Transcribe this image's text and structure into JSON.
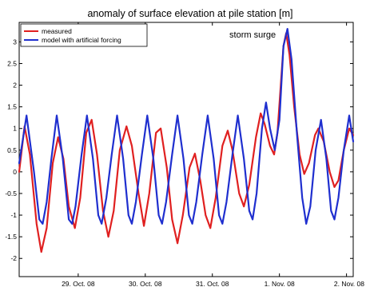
{
  "chart_data": {
    "type": "line",
    "title": "anomaly of surface elevation at pile station [m]",
    "xlabel": "",
    "ylabel": "",
    "xlim": [
      28.12,
      33.1
    ],
    "ylim": [
      -2.42,
      3.45
    ],
    "x_unit": "day of Oct. 2008 (1. Nov = 32)",
    "x_ticks": [
      {
        "value": 29,
        "label": "29. Oct. 08"
      },
      {
        "value": 30,
        "label": "30. Oct. 08"
      },
      {
        "value": 31,
        "label": "31. Oct. 08"
      },
      {
        "value": 32,
        "label": "1. Nov. 08"
      },
      {
        "value": 33,
        "label": "2. Nov. 08"
      }
    ],
    "y_ticks": [
      {
        "value": -2,
        "label": "-2"
      },
      {
        "value": -1.5,
        "label": "-1.5"
      },
      {
        "value": -1,
        "label": "-1"
      },
      {
        "value": -0.5,
        "label": "-0.5"
      },
      {
        "value": 0,
        "label": "0"
      },
      {
        "value": 0.5,
        "label": "0.5"
      },
      {
        "value": 1,
        "label": "1"
      },
      {
        "value": 1.5,
        "label": "1.5"
      },
      {
        "value": 2,
        "label": "2"
      },
      {
        "value": 2.5,
        "label": "2.5"
      },
      {
        "value": 3,
        "label": "3"
      }
    ],
    "grid": false,
    "legend_position": "top-left",
    "annotations": [
      {
        "text": "storm surge",
        "x": 31.6,
        "y": 3.1
      }
    ],
    "series": [
      {
        "name": "measured",
        "color": "#e02020",
        "points": [
          [
            28.12,
            0.0
          ],
          [
            28.2,
            1.05
          ],
          [
            28.28,
            0.4
          ],
          [
            28.38,
            -1.2
          ],
          [
            28.45,
            -1.85
          ],
          [
            28.53,
            -1.3
          ],
          [
            28.62,
            0.2
          ],
          [
            28.7,
            0.8
          ],
          [
            28.78,
            0.3
          ],
          [
            28.86,
            -0.8
          ],
          [
            28.95,
            -1.3
          ],
          [
            29.03,
            -0.6
          ],
          [
            29.12,
            0.9
          ],
          [
            29.2,
            1.2
          ],
          [
            29.28,
            0.4
          ],
          [
            29.37,
            -0.9
          ],
          [
            29.45,
            -1.5
          ],
          [
            29.53,
            -0.9
          ],
          [
            29.62,
            0.5
          ],
          [
            29.72,
            1.05
          ],
          [
            29.8,
            0.6
          ],
          [
            29.9,
            -0.5
          ],
          [
            29.98,
            -1.25
          ],
          [
            30.06,
            -0.5
          ],
          [
            30.16,
            0.9
          ],
          [
            30.23,
            1.0
          ],
          [
            30.32,
            0.1
          ],
          [
            30.4,
            -1.1
          ],
          [
            30.48,
            -1.65
          ],
          [
            30.56,
            -1.0
          ],
          [
            30.66,
            0.1
          ],
          [
            30.74,
            0.42
          ],
          [
            30.82,
            -0.2
          ],
          [
            30.9,
            -1.0
          ],
          [
            30.97,
            -1.3
          ],
          [
            31.05,
            -0.6
          ],
          [
            31.15,
            0.6
          ],
          [
            31.23,
            0.95
          ],
          [
            31.3,
            0.5
          ],
          [
            31.4,
            -0.5
          ],
          [
            31.47,
            -0.8
          ],
          [
            31.55,
            -0.3
          ],
          [
            31.65,
            0.8
          ],
          [
            31.72,
            1.35
          ],
          [
            31.78,
            1.1
          ],
          [
            31.86,
            0.6
          ],
          [
            31.92,
            0.4
          ],
          [
            31.97,
            0.9
          ],
          [
            32.06,
            2.9
          ],
          [
            32.1,
            3.2
          ],
          [
            32.15,
            2.7
          ],
          [
            32.22,
            1.5
          ],
          [
            32.3,
            0.4
          ],
          [
            32.37,
            -0.05
          ],
          [
            32.44,
            0.2
          ],
          [
            32.53,
            0.85
          ],
          [
            32.58,
            1.0
          ],
          [
            32.66,
            0.7
          ],
          [
            32.75,
            0.0
          ],
          [
            32.82,
            -0.35
          ],
          [
            32.88,
            -0.2
          ],
          [
            32.96,
            0.5
          ],
          [
            33.04,
            1.0
          ],
          [
            33.1,
            0.85
          ]
        ]
      },
      {
        "name": "model with artificial forcing",
        "color": "#1f2fcf",
        "points": [
          [
            28.12,
            0.2
          ],
          [
            28.23,
            1.3
          ],
          [
            28.34,
            0.0
          ],
          [
            28.42,
            -1.1
          ],
          [
            28.47,
            -1.2
          ],
          [
            28.53,
            -0.7
          ],
          [
            28.6,
            0.3
          ],
          [
            28.68,
            1.3
          ],
          [
            28.77,
            0.3
          ],
          [
            28.86,
            -1.1
          ],
          [
            28.91,
            -1.2
          ],
          [
            28.96,
            -0.8
          ],
          [
            29.05,
            0.4
          ],
          [
            29.13,
            1.3
          ],
          [
            29.22,
            0.3
          ],
          [
            29.3,
            -1.0
          ],
          [
            29.35,
            -1.2
          ],
          [
            29.42,
            -0.6
          ],
          [
            29.5,
            0.4
          ],
          [
            29.58,
            1.3
          ],
          [
            29.67,
            0.3
          ],
          [
            29.75,
            -1.0
          ],
          [
            29.8,
            -1.2
          ],
          [
            29.86,
            -0.7
          ],
          [
            29.95,
            0.4
          ],
          [
            30.03,
            1.3
          ],
          [
            30.12,
            0.3
          ],
          [
            30.2,
            -1.0
          ],
          [
            30.25,
            -1.2
          ],
          [
            30.31,
            -0.7
          ],
          [
            30.4,
            0.4
          ],
          [
            30.48,
            1.3
          ],
          [
            30.57,
            0.3
          ],
          [
            30.65,
            -1.0
          ],
          [
            30.7,
            -1.2
          ],
          [
            30.76,
            -0.7
          ],
          [
            30.85,
            0.4
          ],
          [
            30.93,
            1.3
          ],
          [
            31.02,
            0.3
          ],
          [
            31.1,
            -1.0
          ],
          [
            31.15,
            -1.2
          ],
          [
            31.21,
            -0.7
          ],
          [
            31.3,
            0.4
          ],
          [
            31.38,
            1.3
          ],
          [
            31.47,
            0.3
          ],
          [
            31.55,
            -0.9
          ],
          [
            31.6,
            -1.1
          ],
          [
            31.66,
            -0.5
          ],
          [
            31.74,
            1.0
          ],
          [
            31.8,
            1.6
          ],
          [
            31.86,
            1.0
          ],
          [
            31.93,
            0.5
          ],
          [
            32.0,
            1.2
          ],
          [
            32.06,
            2.9
          ],
          [
            32.12,
            3.3
          ],
          [
            32.18,
            2.6
          ],
          [
            32.26,
            0.9
          ],
          [
            32.34,
            -0.6
          ],
          [
            32.4,
            -1.2
          ],
          [
            32.46,
            -0.8
          ],
          [
            32.54,
            0.5
          ],
          [
            32.62,
            1.2
          ],
          [
            32.7,
            0.3
          ],
          [
            32.77,
            -0.9
          ],
          [
            32.82,
            -1.1
          ],
          [
            32.88,
            -0.6
          ],
          [
            32.96,
            0.5
          ],
          [
            33.04,
            1.3
          ],
          [
            33.1,
            0.7
          ]
        ]
      }
    ]
  }
}
